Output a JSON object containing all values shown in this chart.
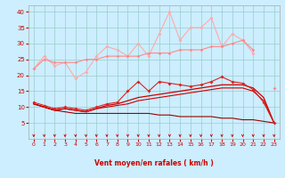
{
  "x": [
    0,
    1,
    2,
    3,
    4,
    5,
    6,
    7,
    8,
    9,
    10,
    11,
    12,
    13,
    14,
    15,
    16,
    17,
    18,
    19,
    20,
    21,
    22,
    23
  ],
  "series": [
    {
      "name": "light_pink_gust",
      "color": "#ffaaaa",
      "values": [
        22,
        26,
        23,
        24,
        19,
        21,
        26,
        29,
        28,
        26,
        30,
        26,
        33,
        40,
        31,
        35,
        35,
        38,
        29,
        33,
        31,
        27,
        null,
        16
      ],
      "marker": "D",
      "markersize": 2.0,
      "lw": 0.8,
      "zorder": 3
    },
    {
      "name": "mid_pink_trend",
      "color": "#ff8888",
      "values": [
        22,
        25,
        24,
        24,
        24,
        25,
        25,
        26,
        26,
        26,
        26,
        27,
        27,
        27,
        28,
        28,
        28,
        29,
        29,
        30,
        31,
        28,
        null,
        16
      ],
      "marker": "D",
      "markersize": 1.8,
      "lw": 0.8,
      "zorder": 4
    },
    {
      "name": "red_mid_diamonds",
      "color": "#dd2222",
      "values": [
        11.5,
        10.5,
        9.5,
        10,
        9.5,
        9,
        10,
        11,
        11.5,
        15,
        18,
        15,
        18,
        17.5,
        17,
        16.5,
        17,
        18,
        19.5,
        18,
        17.5,
        15.5,
        11.5,
        5
      ],
      "marker": "D",
      "markersize": 2.0,
      "lw": 0.8,
      "zorder": 5
    },
    {
      "name": "dark_red_upper",
      "color": "#cc0000",
      "values": [
        11,
        10,
        9,
        9.5,
        9,
        8.5,
        9.5,
        10.5,
        11,
        12,
        13,
        13.5,
        14,
        14.5,
        15,
        15.5,
        16,
        16.5,
        17,
        17,
        17,
        16,
        13,
        5
      ],
      "marker": null,
      "markersize": 0,
      "lw": 0.9,
      "zorder": 4
    },
    {
      "name": "dark_red_lower",
      "color": "#cc0000",
      "values": [
        11,
        10,
        9,
        9.5,
        9,
        8.5,
        9.5,
        10,
        10.5,
        11,
        12,
        12.5,
        13,
        13.5,
        14,
        14.5,
        15,
        15.5,
        16,
        16,
        16,
        15,
        12,
        5
      ],
      "marker": null,
      "markersize": 0,
      "lw": 0.8,
      "zorder": 3
    },
    {
      "name": "bottom_line",
      "color": "#990000",
      "values": [
        11,
        10,
        9,
        8.5,
        8,
        8,
        8,
        8,
        8,
        8,
        8,
        8,
        7.5,
        7.5,
        7,
        7,
        7,
        7,
        6.5,
        6.5,
        6,
        6,
        5.5,
        5
      ],
      "marker": null,
      "markersize": 0,
      "lw": 0.8,
      "zorder": 2
    }
  ],
  "xlabel": "Vent moyen/en rafales ( km/h )",
  "ylim": [
    0,
    42
  ],
  "xlim": [
    -0.5,
    23.5
  ],
  "yticks": [
    5,
    10,
    15,
    20,
    25,
    30,
    35,
    40
  ],
  "xticks": [
    0,
    1,
    2,
    3,
    4,
    5,
    6,
    7,
    8,
    9,
    10,
    11,
    12,
    13,
    14,
    15,
    16,
    17,
    18,
    19,
    20,
    21,
    22,
    23
  ],
  "bg_color": "#cceeff",
  "grid_color": "#99cccc",
  "tick_color": "#cc0000",
  "label_color": "#cc0000"
}
